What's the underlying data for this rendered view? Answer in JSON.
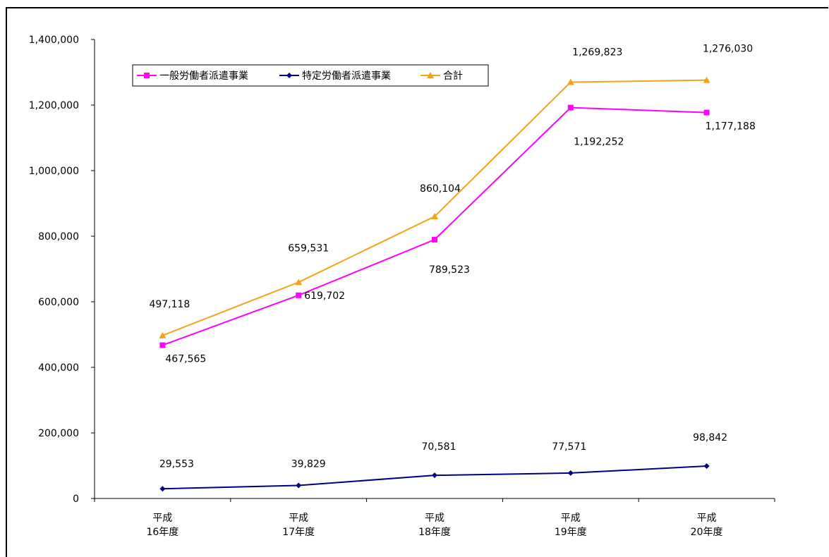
{
  "chart_data": {
    "type": "line",
    "categories": [
      [
        "平成",
        "16年度"
      ],
      [
        "平成",
        "17年度"
      ],
      [
        "平成",
        "18年度"
      ],
      [
        "平成",
        "19年度"
      ],
      [
        "平成",
        "20年度"
      ]
    ],
    "ylim": [
      0,
      1400000
    ],
    "yticks": [
      0,
      200000,
      400000,
      600000,
      800000,
      1000000,
      1200000,
      1400000
    ],
    "ytick_labels": [
      "0",
      "200,000",
      "400,000",
      "600,000",
      "800,000",
      "1,000,000",
      "1,200,000",
      "1,400,000"
    ],
    "grid": false,
    "legend_position": "top-left",
    "series": [
      {
        "name": "一般労働者派遣事業",
        "color": "#ff00ff",
        "marker": "square",
        "values": [
          467565,
          619702,
          789523,
          1192252,
          1177188
        ],
        "labels": [
          "467,565",
          "619,702",
          "789,523",
          "1,192,252",
          "1,177,188"
        ]
      },
      {
        "name": "特定労働者派遣事業",
        "color": "#000080",
        "marker": "diamond",
        "values": [
          29553,
          39829,
          70581,
          77571,
          98842
        ],
        "labels": [
          "29,553",
          "39,829",
          "70,581",
          "77,571",
          "98,842"
        ]
      },
      {
        "name": "合計",
        "color": "#f4a21a",
        "marker": "triangle",
        "values": [
          497118,
          659531,
          860104,
          1269823,
          1276030
        ],
        "labels": [
          "497,118",
          "659,531",
          "860,104",
          "1,269,823",
          "1,276,030"
        ]
      }
    ]
  }
}
